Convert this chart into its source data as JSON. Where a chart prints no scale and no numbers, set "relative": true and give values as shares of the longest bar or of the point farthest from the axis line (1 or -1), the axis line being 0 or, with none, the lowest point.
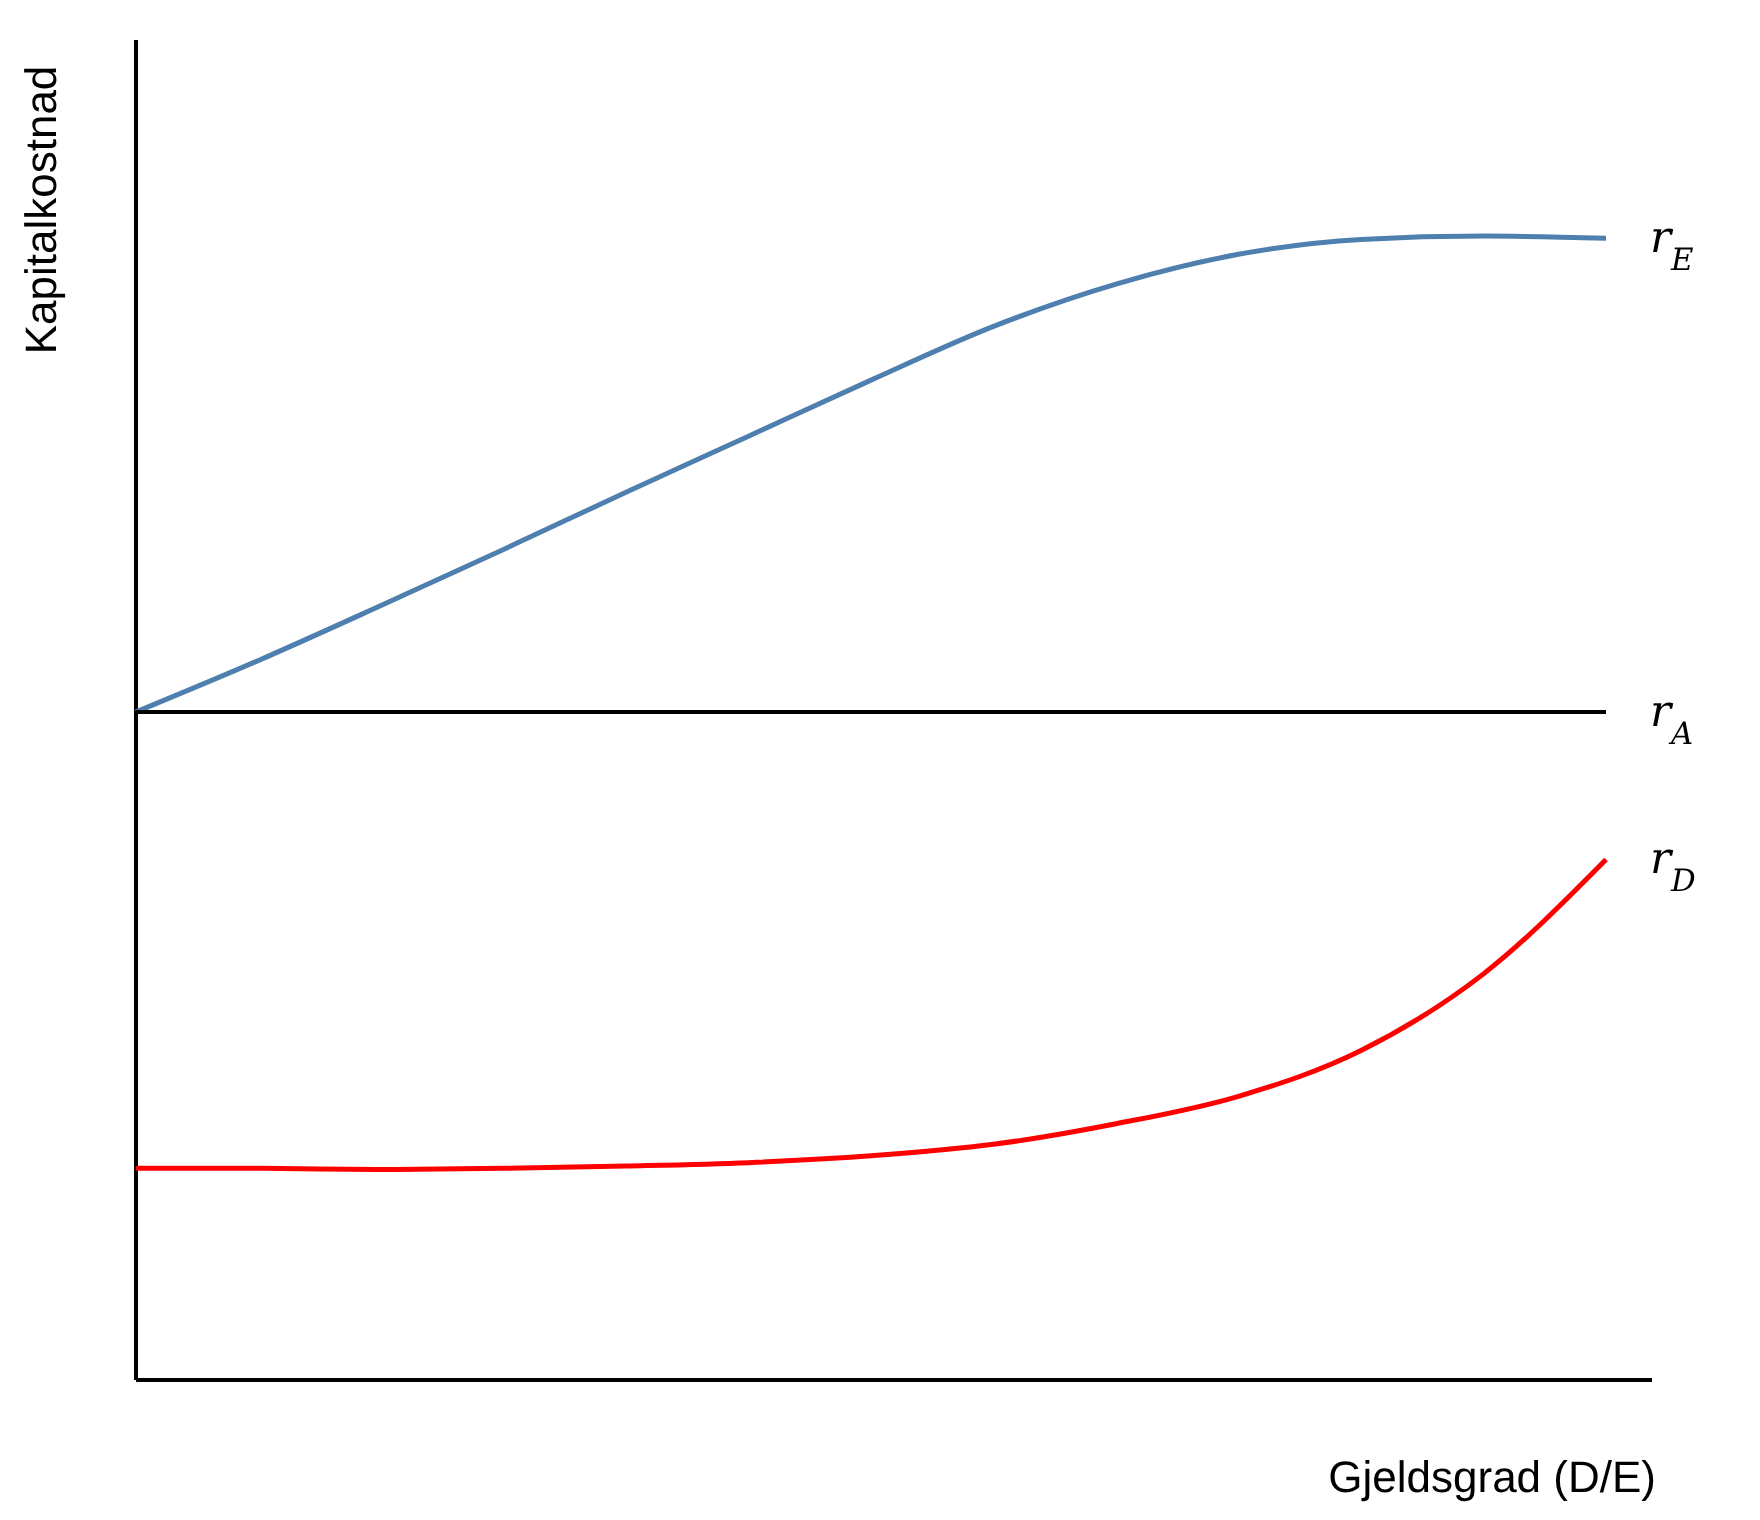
{
  "chart_data": {
    "type": "line",
    "relative": true,
    "xlabel": "Gjeldsgrad (D/E)",
    "ylabel": "Kapitalkostnad",
    "marker": "none",
    "line_style": "solid",
    "categories": [
      null,
      null,
      null,
      null,
      null,
      null,
      null,
      null,
      null,
      null,
      null,
      null,
      null
    ],
    "series": [
      {
        "name": "r$_{E}$",
        "color": "#4e7fae",
        "values": [
          0.584,
          0.629,
          0.677,
          0.726,
          0.776,
          0.825,
          0.874,
          0.921,
          0.958,
          0.984,
          0.997,
          1,
          0.998
        ]
      },
      {
        "name": "r$_{A}$",
        "color": "#000000",
        "values": [
          0.584,
          0.584,
          0.584,
          0.584,
          0.584,
          0.584,
          0.584,
          0.584,
          0.584,
          0.584,
          0.584,
          0.584,
          0.584
        ]
      },
      {
        "name": "r$_{D}$",
        "color": "#ff0000",
        "values": [
          0.185,
          0.185,
          0.184,
          0.185,
          0.187,
          0.19,
          0.196,
          0.206,
          0.224,
          0.248,
          0.288,
          0.355,
          0.455
        ]
      }
    ]
  }
}
